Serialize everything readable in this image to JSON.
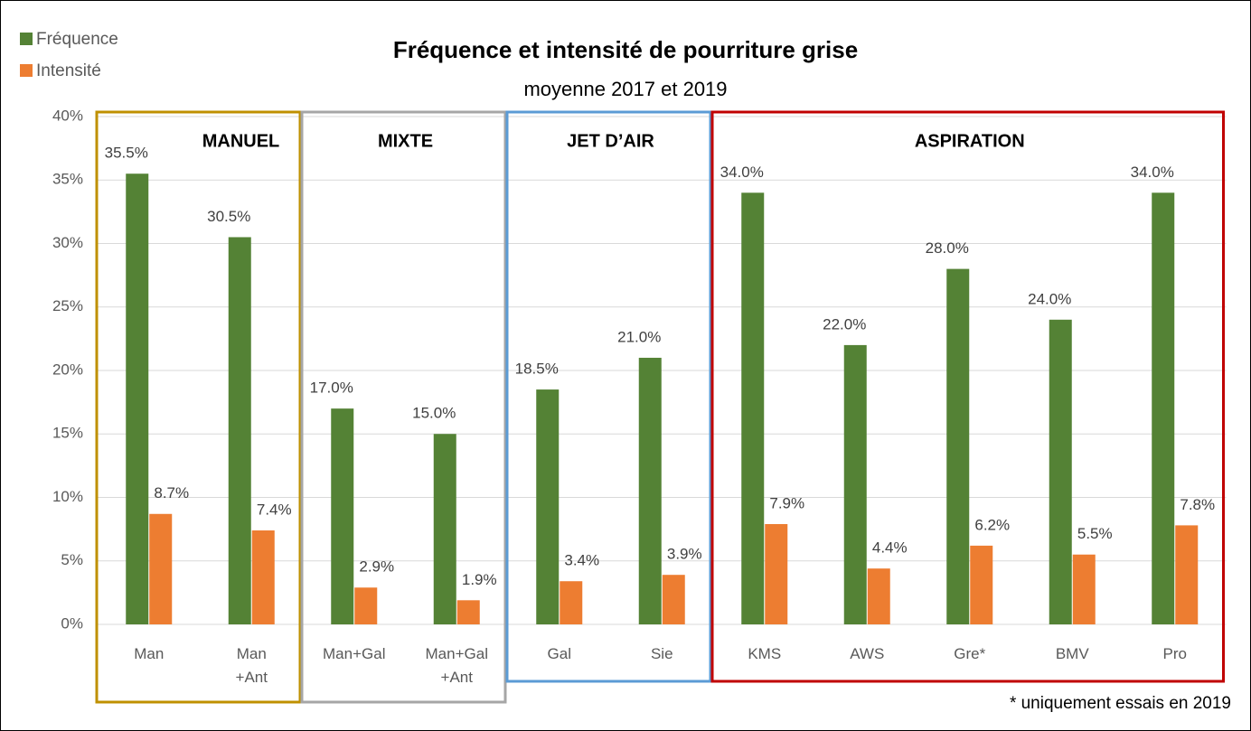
{
  "chart_data": {
    "type": "bar",
    "title": "Fréquence et intensité de pourriture grise",
    "subtitle": "moyenne 2017 et 2019",
    "footnote": "* uniquement essais en 2019",
    "groups": [
      {
        "label": "MANUEL",
        "color": "#bf9000",
        "categories": [
          "Man",
          "Man +Ant"
        ]
      },
      {
        "label": "MIXTE",
        "color": "#a6a6a6",
        "categories": [
          "Man+Gal",
          "Man+Gal +Ant"
        ]
      },
      {
        "label": "JET D’AIR",
        "color": "#5b9bd5",
        "categories": [
          "Gal",
          "Sie"
        ]
      },
      {
        "label": "ASPIRATION",
        "color": "#c00000",
        "categories": [
          "KMS",
          "AWS",
          "Gre*",
          "BMV",
          "Pro"
        ]
      }
    ],
    "series": [
      {
        "name": "Fréquence",
        "color": "#548235",
        "values": [
          35.5,
          30.5,
          17.0,
          15.0,
          18.5,
          21.0,
          34.0,
          22.0,
          28.0,
          24.0,
          34.0
        ],
        "value_labels": [
          "35.5%",
          "30.5%",
          "17.0%",
          "15.0%",
          "18.5%",
          "21.0%",
          "34.0%",
          "22.0%",
          "28.0%",
          "24.0%",
          "34.0%"
        ]
      },
      {
        "name": "Intensité",
        "color": "#ed7d31",
        "values": [
          8.7,
          7.4,
          2.9,
          1.9,
          3.4,
          3.9,
          7.9,
          4.4,
          6.2,
          5.5,
          7.8
        ],
        "value_labels": [
          "8.7%",
          "7.4%",
          "2.9%",
          "1.9%",
          "3.4%",
          "3.9%",
          "7.9%",
          "4.4%",
          "6.2%",
          "5.5%",
          "7.8%"
        ]
      }
    ],
    "ylim": [
      0,
      40
    ],
    "yticks": [
      {
        "value": 0,
        "label": "0%"
      },
      {
        "value": 5,
        "label": "5%"
      },
      {
        "value": 10,
        "label": "10%"
      },
      {
        "value": 15,
        "label": "15%"
      },
      {
        "value": 20,
        "label": "20%"
      },
      {
        "value": 25,
        "label": "25%"
      },
      {
        "value": 30,
        "label": "30%"
      },
      {
        "value": 35,
        "label": "35%"
      },
      {
        "value": 40,
        "label": "40%"
      }
    ],
    "grid": true,
    "legend": "top-left"
  }
}
